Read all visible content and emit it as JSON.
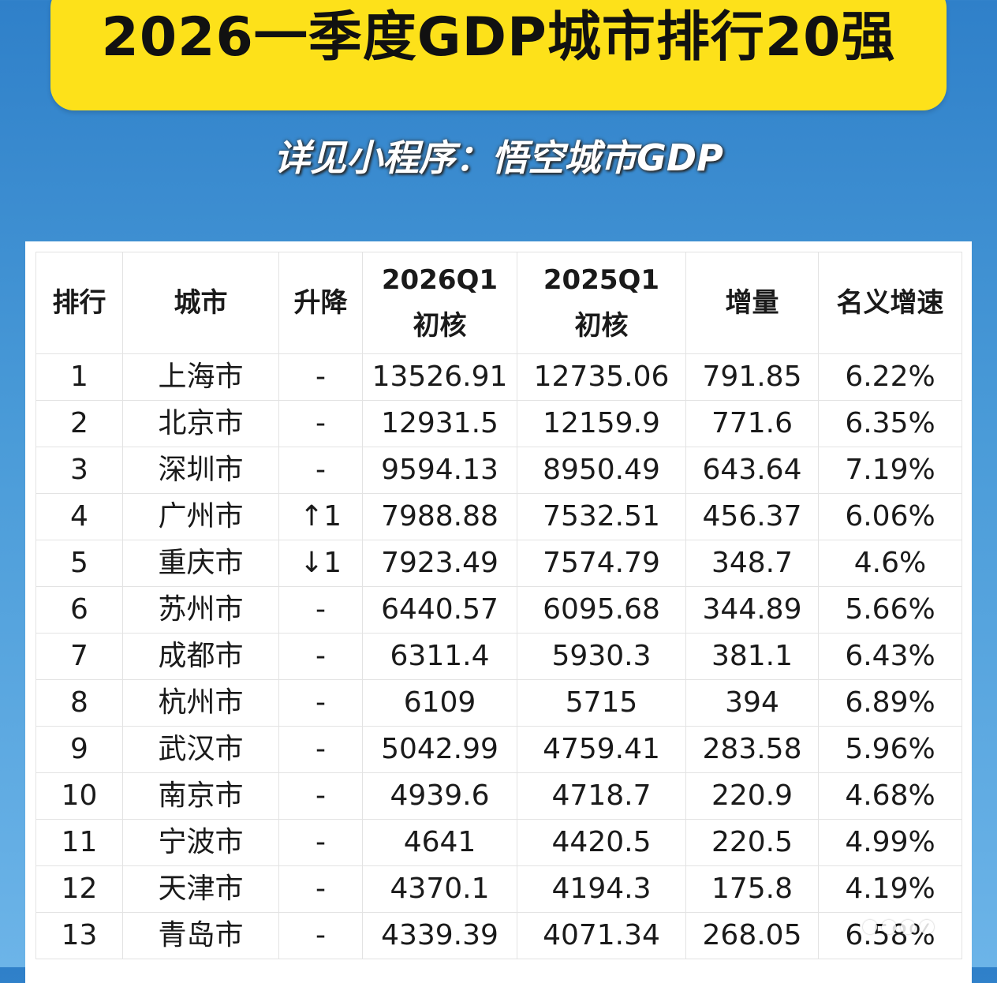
{
  "title": "2026一季度GDP城市排行20强",
  "subtitle": "详见小程序：悟空城市GDP",
  "table": {
    "headers": [
      {
        "lines": [
          "排行"
        ]
      },
      {
        "lines": [
          "城市"
        ]
      },
      {
        "lines": [
          "升降"
        ]
      },
      {
        "lines": [
          "2026Q1",
          "初核"
        ]
      },
      {
        "lines": [
          "2025Q1",
          "初核"
        ]
      },
      {
        "lines": [
          "增量"
        ]
      },
      {
        "lines": [
          "名义增速"
        ]
      }
    ],
    "rows": [
      [
        "1",
        "上海市",
        "-",
        "13526.91",
        "12735.06",
        "791.85",
        "6.22%"
      ],
      [
        "2",
        "北京市",
        "-",
        "12931.5",
        "12159.9",
        "771.6",
        "6.35%"
      ],
      [
        "3",
        "深圳市",
        "-",
        "9594.13",
        "8950.49",
        "643.64",
        "7.19%"
      ],
      [
        "4",
        "广州市",
        "↑1",
        "7988.88",
        "7532.51",
        "456.37",
        "6.06%"
      ],
      [
        "5",
        "重庆市",
        "↓1",
        "7923.49",
        "7574.79",
        "348.7",
        "4.6%"
      ],
      [
        "6",
        "苏州市",
        "-",
        "6440.57",
        "6095.68",
        "344.89",
        "5.66%"
      ],
      [
        "7",
        "成都市",
        "-",
        "6311.4",
        "5930.3",
        "381.1",
        "6.43%"
      ],
      [
        "8",
        "杭州市",
        "-",
        "6109",
        "5715",
        "394",
        "6.89%"
      ],
      [
        "9",
        "武汉市",
        "-",
        "5042.99",
        "4759.41",
        "283.58",
        "5.96%"
      ],
      [
        "10",
        "南京市",
        "-",
        "4939.6",
        "4718.7",
        "220.9",
        "4.68%"
      ],
      [
        "11",
        "宁波市",
        "-",
        "4641",
        "4420.5",
        "220.5",
        "4.99%"
      ],
      [
        "12",
        "天津市",
        "-",
        "4370.1",
        "4194.3",
        "175.8",
        "4.19%"
      ],
      [
        "13",
        "青岛市",
        "-",
        "4339.39",
        "4071.34",
        "268.05",
        "6.58%"
      ]
    ]
  }
}
